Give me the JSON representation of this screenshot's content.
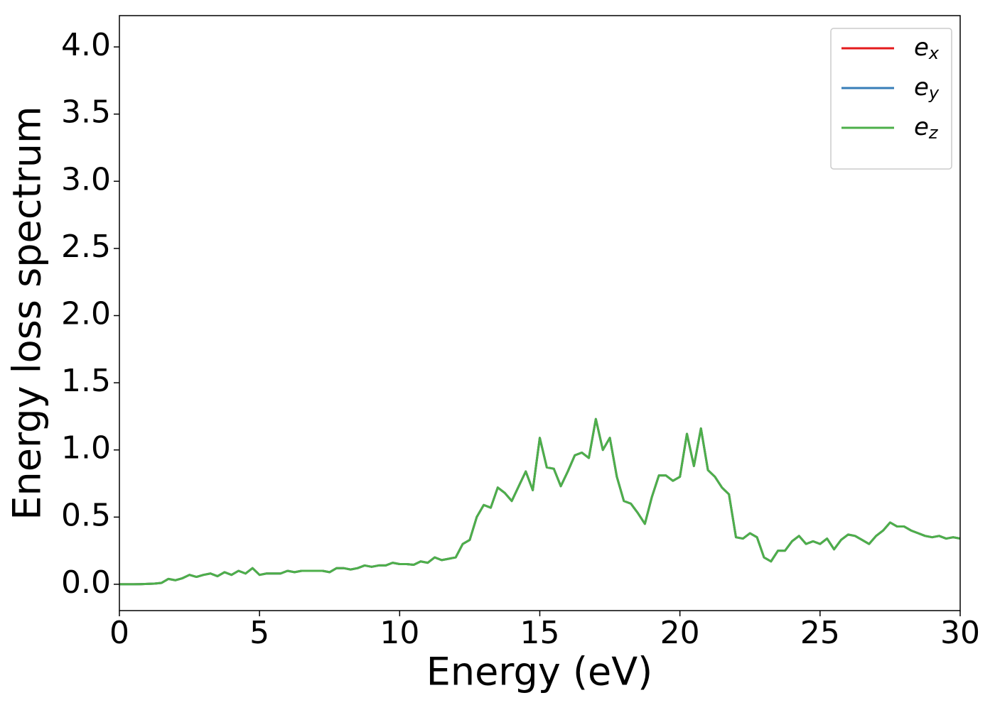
{
  "chart_data": {
    "type": "line",
    "xlabel": "Energy (eV)",
    "ylabel": "Energy loss spectrum",
    "x": [
      0,
      0.25,
      0.5,
      0.75,
      1,
      1.25,
      1.5,
      1.75,
      2,
      2.25,
      2.5,
      2.75,
      3,
      3.25,
      3.5,
      3.75,
      4,
      4.25,
      4.5,
      4.75,
      5,
      5.25,
      5.5,
      5.75,
      6,
      6.25,
      6.5,
      6.75,
      7,
      7.25,
      7.5,
      7.75,
      8,
      8.25,
      8.5,
      8.75,
      9,
      9.25,
      9.5,
      9.75,
      10,
      10.25,
      10.5,
      10.75,
      11,
      11.25,
      11.5,
      11.75,
      12,
      12.25,
      12.5,
      12.75,
      13,
      13.25,
      13.5,
      13.75,
      14,
      14.25,
      14.5,
      14.75,
      15,
      15.25,
      15.5,
      15.75,
      16,
      16.25,
      16.5,
      16.75,
      17,
      17.25,
      17.5,
      17.75,
      18,
      18.25,
      18.5,
      18.75,
      19,
      19.25,
      19.5,
      19.75,
      20,
      20.25,
      20.5,
      20.75,
      21,
      21.25,
      21.5,
      21.75,
      22,
      22.25,
      22.5,
      22.75,
      23,
      23.25,
      23.5,
      23.75,
      24,
      24.25,
      24.5,
      24.75,
      25,
      25.25,
      25.5,
      25.75,
      26,
      26.25,
      26.5,
      26.75,
      27,
      27.25,
      27.5,
      27.75,
      28,
      28.25,
      28.5,
      28.75,
      29,
      29.25,
      29.5,
      29.75,
      30
    ],
    "series": [
      {
        "name": "ex",
        "color": "#e41a1c",
        "values": [
          0,
          0,
          0,
          0.001,
          0.003,
          0.005,
          0.01,
          0.04,
          0.03,
          0.045,
          0.07,
          0.055,
          0.07,
          0.08,
          0.06,
          0.09,
          0.07,
          0.1,
          0.08,
          0.12,
          0.07,
          0.08,
          0.08,
          0.08,
          0.1,
          0.09,
          0.1,
          0.1,
          0.1,
          0.1,
          0.09,
          0.12,
          0.12,
          0.11,
          0.12,
          0.14,
          0.13,
          0.14,
          0.14,
          0.16,
          0.15,
          0.15,
          0.145,
          0.17,
          0.16,
          0.2,
          0.18,
          0.19,
          0.2,
          0.3,
          0.33,
          0.5,
          0.59,
          0.57,
          0.72,
          0.68,
          0.62,
          0.73,
          0.84,
          0.7,
          1.09,
          0.87,
          0.86,
          0.73,
          0.84,
          0.96,
          0.98,
          0.94,
          1.23,
          1.0,
          1.09,
          0.8,
          0.62,
          0.6,
          0.53,
          0.45,
          0.65,
          0.81,
          0.81,
          0.77,
          0.8,
          1.12,
          0.88,
          1.16,
          0.85,
          0.8,
          0.72,
          0.67,
          0.35,
          0.34,
          0.38,
          0.35,
          0.2,
          0.17,
          0.25,
          0.25,
          0.32,
          0.36,
          0.3,
          0.32,
          0.3,
          0.34,
          0.26,
          0.33,
          0.37,
          0.36,
          0.33,
          0.3,
          0.36,
          0.4,
          0.46,
          0.43,
          0.43,
          0.4,
          0.38,
          0.36,
          0.35,
          0.36,
          0.34,
          0.35,
          0.34
        ]
      },
      {
        "name": "ey",
        "color": "#377eb8",
        "values": [
          0,
          0,
          0,
          0.001,
          0.003,
          0.005,
          0.01,
          0.04,
          0.03,
          0.045,
          0.07,
          0.055,
          0.07,
          0.08,
          0.06,
          0.09,
          0.07,
          0.1,
          0.08,
          0.12,
          0.07,
          0.08,
          0.08,
          0.08,
          0.1,
          0.09,
          0.1,
          0.1,
          0.1,
          0.1,
          0.09,
          0.12,
          0.12,
          0.11,
          0.12,
          0.14,
          0.13,
          0.14,
          0.14,
          0.16,
          0.15,
          0.15,
          0.145,
          0.17,
          0.16,
          0.2,
          0.18,
          0.19,
          0.2,
          0.3,
          0.33,
          0.5,
          0.59,
          0.57,
          0.72,
          0.68,
          0.62,
          0.73,
          0.84,
          0.7,
          1.09,
          0.87,
          0.86,
          0.73,
          0.84,
          0.96,
          0.98,
          0.94,
          1.23,
          1.0,
          1.09,
          0.8,
          0.62,
          0.6,
          0.53,
          0.45,
          0.65,
          0.81,
          0.81,
          0.77,
          0.8,
          1.12,
          0.88,
          1.16,
          0.85,
          0.8,
          0.72,
          0.67,
          0.35,
          0.34,
          0.38,
          0.35,
          0.2,
          0.17,
          0.25,
          0.25,
          0.32,
          0.36,
          0.3,
          0.32,
          0.3,
          0.34,
          0.26,
          0.33,
          0.37,
          0.36,
          0.33,
          0.3,
          0.36,
          0.4,
          0.46,
          0.43,
          0.43,
          0.4,
          0.38,
          0.36,
          0.35,
          0.36,
          0.34,
          0.35,
          0.34
        ]
      },
      {
        "name": "ez",
        "color": "#4daf4a",
        "values": [
          0,
          0,
          0,
          0.001,
          0.003,
          0.005,
          0.01,
          0.04,
          0.03,
          0.045,
          0.07,
          0.055,
          0.07,
          0.08,
          0.06,
          0.09,
          0.07,
          0.1,
          0.08,
          0.12,
          0.07,
          0.08,
          0.08,
          0.08,
          0.1,
          0.09,
          0.1,
          0.1,
          0.1,
          0.1,
          0.09,
          0.12,
          0.12,
          0.11,
          0.12,
          0.14,
          0.13,
          0.14,
          0.14,
          0.16,
          0.15,
          0.15,
          0.145,
          0.17,
          0.16,
          0.2,
          0.18,
          0.19,
          0.2,
          0.3,
          0.33,
          0.5,
          0.59,
          0.57,
          0.72,
          0.68,
          0.62,
          0.73,
          0.84,
          0.7,
          1.09,
          0.87,
          0.86,
          0.73,
          0.84,
          0.96,
          0.98,
          0.94,
          1.23,
          1.0,
          1.09,
          0.8,
          0.62,
          0.6,
          0.53,
          0.45,
          0.65,
          0.81,
          0.81,
          0.77,
          0.8,
          1.12,
          0.88,
          1.16,
          0.85,
          0.8,
          0.72,
          0.67,
          0.35,
          0.34,
          0.38,
          0.35,
          0.2,
          0.17,
          0.25,
          0.25,
          0.32,
          0.36,
          0.3,
          0.32,
          0.3,
          0.34,
          0.26,
          0.33,
          0.37,
          0.36,
          0.33,
          0.3,
          0.36,
          0.4,
          0.46,
          0.43,
          0.43,
          0.4,
          0.38,
          0.36,
          0.35,
          0.36,
          0.34,
          0.35,
          0.34
        ]
      }
    ],
    "xlim": [
      0,
      30
    ],
    "xticks": [
      0,
      5,
      10,
      15,
      20,
      25,
      30
    ],
    "ylim": [
      -0.196,
      4.233
    ],
    "yticks": [
      {
        "value": 0,
        "label": "0.0"
      },
      0.5,
      {
        "value": 1,
        "label": "1.0"
      },
      1.5,
      {
        "value": 2,
        "label": "2.0"
      },
      2.5,
      {
        "value": 3,
        "label": "3.0"
      },
      3.5,
      {
        "value": 4,
        "label": "4.0"
      }
    ],
    "grid": false,
    "legend": "upper right"
  }
}
